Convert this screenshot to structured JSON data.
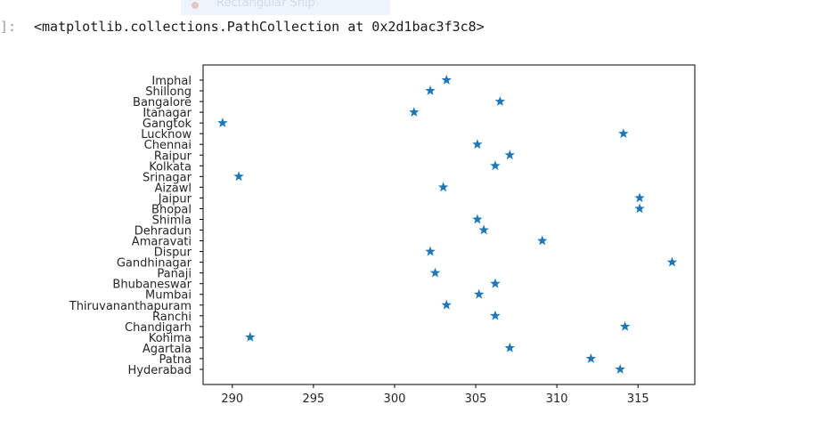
{
  "notebook": {
    "snip_label": "Rectangular Snip",
    "prompt": "]:",
    "output_text": "<matplotlib.collections.PathCollection at 0x2d1bac3f3c8>"
  },
  "chart_data": {
    "type": "scatter",
    "marker": "star",
    "color": "#1f77b4",
    "xlim": [
      288.2,
      318.5
    ],
    "xticks": [
      290,
      295,
      300,
      305,
      310,
      315
    ],
    "categories": [
      "Imphal",
      "Shillong",
      "Bangalore",
      "Itanagar",
      "Gangtok",
      "Lucknow",
      "Chennai",
      "Raipur",
      "Kolkata",
      "Srinagar",
      "Aizawl",
      "Jaipur",
      "Bhopal",
      "Shimla",
      "Dehradun",
      "Amaravati",
      "Dispur",
      "Gandhinagar",
      "Panaji",
      "Bhubaneswar",
      "Mumbai",
      "Thiruvananthapuram",
      "Ranchi",
      "Chandigarh",
      "Kohima",
      "Agartala",
      "Patna",
      "Hyderabad"
    ],
    "values": [
      303.2,
      302.2,
      306.5,
      301.2,
      289.4,
      314.1,
      305.1,
      307.1,
      306.2,
      290.4,
      303.0,
      315.1,
      315.1,
      305.1,
      305.5,
      309.1,
      302.2,
      317.1,
      302.5,
      306.2,
      305.2,
      303.2,
      306.2,
      314.2,
      291.1,
      307.1,
      312.1,
      313.9
    ],
    "title": "",
    "xlabel": "",
    "ylabel": "",
    "grid": false
  }
}
